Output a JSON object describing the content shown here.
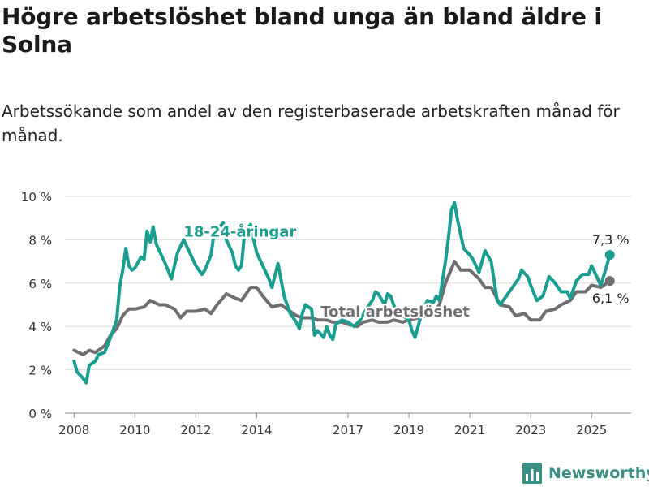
{
  "header": {
    "title": "Högre arbetslöshet bland unga än bland äldre i Solna",
    "subtitle": "Arbetssökande som andel av den registerbaserade arbetskraften månad för månad."
  },
  "brand": {
    "name": "Newsworthy",
    "icon": "bar-chart-logo-icon",
    "color": "#3a8f84"
  },
  "chart_data": {
    "type": "line",
    "title": "Högre arbetslöshet bland unga än bland äldre i Solna",
    "subtitle": "Arbetssökande som andel av den registerbaserade arbetskraften månad för månad.",
    "ylim": [
      0,
      10
    ],
    "xlim": [
      2007.7,
      2026.3
    ],
    "y_ticks": [
      0,
      2,
      4,
      6,
      8,
      10
    ],
    "y_tick_labels": [
      "0 %",
      "2 %",
      "4 %",
      "6 %",
      "8 %",
      "10 %"
    ],
    "x_ticks": [
      2008,
      2010,
      2012,
      2014,
      2017,
      2019,
      2021,
      2023,
      2025
    ],
    "x_tick_labels": [
      "2008",
      "2010",
      "2012",
      "2014",
      "2017",
      "2019",
      "2021",
      "2023",
      "2025"
    ],
    "grid": "horizontal",
    "series": [
      {
        "name": "Total arbetslöshet",
        "color": "#6f6f73",
        "end_label": "6,1 %",
        "points": [
          [
            2008.0,
            2.9
          ],
          [
            2008.3,
            2.7
          ],
          [
            2008.5,
            2.9
          ],
          [
            2008.7,
            2.8
          ],
          [
            2009.0,
            3.1
          ],
          [
            2009.2,
            3.6
          ],
          [
            2009.4,
            3.9
          ],
          [
            2009.6,
            4.5
          ],
          [
            2009.8,
            4.8
          ],
          [
            2010.0,
            4.8
          ],
          [
            2010.3,
            4.9
          ],
          [
            2010.5,
            5.2
          ],
          [
            2010.8,
            5.0
          ],
          [
            2011.0,
            5.0
          ],
          [
            2011.3,
            4.8
          ],
          [
            2011.5,
            4.4
          ],
          [
            2011.7,
            4.7
          ],
          [
            2012.0,
            4.7
          ],
          [
            2012.3,
            4.8
          ],
          [
            2012.5,
            4.6
          ],
          [
            2012.7,
            5.0
          ],
          [
            2013.0,
            5.5
          ],
          [
            2013.3,
            5.3
          ],
          [
            2013.5,
            5.2
          ],
          [
            2013.8,
            5.8
          ],
          [
            2014.0,
            5.8
          ],
          [
            2014.2,
            5.4
          ],
          [
            2014.5,
            4.9
          ],
          [
            2014.8,
            5.0
          ],
          [
            2015.0,
            4.8
          ],
          [
            2015.3,
            4.5
          ],
          [
            2015.5,
            4.4
          ],
          [
            2015.8,
            4.4
          ],
          [
            2016.0,
            4.3
          ],
          [
            2016.3,
            4.3
          ],
          [
            2016.5,
            4.2
          ],
          [
            2016.8,
            4.2
          ],
          [
            2017.0,
            4.1
          ],
          [
            2017.3,
            4.0
          ],
          [
            2017.5,
            4.2
          ],
          [
            2017.8,
            4.3
          ],
          [
            2018.0,
            4.2
          ],
          [
            2018.3,
            4.2
          ],
          [
            2018.5,
            4.3
          ],
          [
            2018.8,
            4.2
          ],
          [
            2019.0,
            4.3
          ],
          [
            2019.3,
            4.4
          ],
          [
            2019.6,
            4.5
          ],
          [
            2019.8,
            4.6
          ],
          [
            2020.0,
            5.0
          ],
          [
            2020.2,
            6.0
          ],
          [
            2020.5,
            7.0
          ],
          [
            2020.7,
            6.6
          ],
          [
            2021.0,
            6.6
          ],
          [
            2021.3,
            6.2
          ],
          [
            2021.5,
            5.8
          ],
          [
            2021.7,
            5.8
          ],
          [
            2022.0,
            5.0
          ],
          [
            2022.3,
            4.9
          ],
          [
            2022.5,
            4.5
          ],
          [
            2022.8,
            4.6
          ],
          [
            2023.0,
            4.3
          ],
          [
            2023.3,
            4.3
          ],
          [
            2023.5,
            4.7
          ],
          [
            2023.8,
            4.8
          ],
          [
            2024.0,
            5.0
          ],
          [
            2024.3,
            5.2
          ],
          [
            2024.5,
            5.6
          ],
          [
            2024.8,
            5.6
          ],
          [
            2025.0,
            5.9
          ],
          [
            2025.3,
            5.8
          ],
          [
            2025.6,
            6.1
          ]
        ]
      },
      {
        "name": "18-24-åringar",
        "color": "#1a9e8f",
        "end_label": "7,3 %",
        "points": [
          [
            2008.0,
            2.4
          ],
          [
            2008.1,
            1.9
          ],
          [
            2008.3,
            1.6
          ],
          [
            2008.4,
            1.4
          ],
          [
            2008.5,
            2.2
          ],
          [
            2008.7,
            2.4
          ],
          [
            2008.8,
            2.7
          ],
          [
            2009.0,
            2.8
          ],
          [
            2009.2,
            3.5
          ],
          [
            2009.4,
            4.3
          ],
          [
            2009.5,
            5.8
          ],
          [
            2009.6,
            6.6
          ],
          [
            2009.7,
            7.6
          ],
          [
            2009.8,
            6.8
          ],
          [
            2009.9,
            6.6
          ],
          [
            2010.0,
            6.7
          ],
          [
            2010.2,
            7.2
          ],
          [
            2010.3,
            7.1
          ],
          [
            2010.4,
            8.4
          ],
          [
            2010.5,
            7.9
          ],
          [
            2010.6,
            8.6
          ],
          [
            2010.7,
            7.8
          ],
          [
            2010.9,
            7.2
          ],
          [
            2011.0,
            6.9
          ],
          [
            2011.2,
            6.2
          ],
          [
            2011.4,
            7.4
          ],
          [
            2011.6,
            8.0
          ],
          [
            2011.8,
            7.4
          ],
          [
            2012.0,
            6.8
          ],
          [
            2012.2,
            6.4
          ],
          [
            2012.3,
            6.6
          ],
          [
            2012.5,
            7.3
          ],
          [
            2012.6,
            8.3
          ],
          [
            2012.8,
            8.6
          ],
          [
            2012.9,
            8.8
          ],
          [
            2013.0,
            8.0
          ],
          [
            2013.2,
            7.4
          ],
          [
            2013.3,
            6.8
          ],
          [
            2013.4,
            6.6
          ],
          [
            2013.5,
            6.8
          ],
          [
            2013.6,
            8.3
          ],
          [
            2013.8,
            8.7
          ],
          [
            2013.9,
            8.0
          ],
          [
            2014.0,
            7.4
          ],
          [
            2014.2,
            6.8
          ],
          [
            2014.4,
            6.2
          ],
          [
            2014.5,
            5.8
          ],
          [
            2014.7,
            6.9
          ],
          [
            2014.9,
            5.4
          ],
          [
            2015.1,
            4.6
          ],
          [
            2015.3,
            4.2
          ],
          [
            2015.4,
            3.9
          ],
          [
            2015.5,
            4.6
          ],
          [
            2015.6,
            5.0
          ],
          [
            2015.8,
            4.8
          ],
          [
            2015.9,
            3.6
          ],
          [
            2016.0,
            3.8
          ],
          [
            2016.2,
            3.5
          ],
          [
            2016.3,
            4.0
          ],
          [
            2016.4,
            3.6
          ],
          [
            2016.5,
            3.4
          ],
          [
            2016.6,
            4.1
          ],
          [
            2016.8,
            4.3
          ],
          [
            2017.0,
            4.2
          ],
          [
            2017.2,
            4.0
          ],
          [
            2017.4,
            4.3
          ],
          [
            2017.6,
            4.8
          ],
          [
            2017.8,
            5.2
          ],
          [
            2017.9,
            5.6
          ],
          [
            2018.0,
            5.5
          ],
          [
            2018.2,
            5.0
          ],
          [
            2018.3,
            5.5
          ],
          [
            2018.4,
            5.4
          ],
          [
            2018.6,
            4.6
          ],
          [
            2018.8,
            4.5
          ],
          [
            2019.0,
            4.3
          ],
          [
            2019.1,
            3.8
          ],
          [
            2019.2,
            3.5
          ],
          [
            2019.4,
            4.5
          ],
          [
            2019.6,
            5.2
          ],
          [
            2019.8,
            5.1
          ],
          [
            2019.9,
            5.4
          ],
          [
            2020.0,
            5.2
          ],
          [
            2020.2,
            7.0
          ],
          [
            2020.3,
            8.1
          ],
          [
            2020.4,
            9.4
          ],
          [
            2020.5,
            9.7
          ],
          [
            2020.6,
            8.9
          ],
          [
            2020.8,
            7.6
          ],
          [
            2021.0,
            7.3
          ],
          [
            2021.1,
            7.1
          ],
          [
            2021.3,
            6.5
          ],
          [
            2021.5,
            7.5
          ],
          [
            2021.7,
            7.0
          ],
          [
            2021.9,
            5.2
          ],
          [
            2022.0,
            5.0
          ],
          [
            2022.2,
            5.4
          ],
          [
            2022.4,
            5.8
          ],
          [
            2022.6,
            6.2
          ],
          [
            2022.7,
            6.6
          ],
          [
            2022.9,
            6.3
          ],
          [
            2023.0,
            5.9
          ],
          [
            2023.2,
            5.2
          ],
          [
            2023.4,
            5.4
          ],
          [
            2023.6,
            6.3
          ],
          [
            2023.8,
            6.0
          ],
          [
            2024.0,
            5.6
          ],
          [
            2024.2,
            5.6
          ],
          [
            2024.3,
            5.3
          ],
          [
            2024.5,
            6.1
          ],
          [
            2024.7,
            6.4
          ],
          [
            2024.9,
            6.4
          ],
          [
            2025.0,
            6.8
          ],
          [
            2025.1,
            6.5
          ],
          [
            2025.3,
            5.9
          ],
          [
            2025.5,
            6.8
          ],
          [
            2025.6,
            7.3
          ]
        ]
      }
    ],
    "annotations": [
      {
        "text": "18-24-åringar",
        "series": "18-24-åringar",
        "x": 2011.6,
        "y": 8.15,
        "anchor": "start"
      },
      {
        "text": "Total arbetslöshet",
        "series": "Total arbetslöshet",
        "x": 2016.1,
        "y": 4.45,
        "anchor": "start"
      }
    ]
  }
}
